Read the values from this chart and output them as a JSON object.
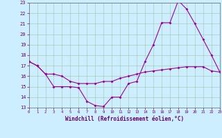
{
  "xlabel": "Windchill (Refroidissement éolien,°C)",
  "background_color": "#cceeff",
  "grid_color": "#aaccbb",
  "line_color": "#990099",
  "xlim": [
    0,
    23
  ],
  "ylim": [
    13,
    23
  ],
  "xticks": [
    0,
    1,
    2,
    3,
    4,
    5,
    6,
    7,
    8,
    9,
    10,
    11,
    12,
    13,
    14,
    15,
    16,
    17,
    18,
    19,
    20,
    21,
    22,
    23
  ],
  "yticks": [
    13,
    14,
    15,
    16,
    17,
    18,
    19,
    20,
    21,
    22,
    23
  ],
  "line1_x": [
    0,
    1,
    2,
    3,
    4,
    5,
    6,
    7,
    8,
    9,
    10,
    11,
    12,
    13,
    14,
    15,
    16,
    17,
    18,
    19,
    20,
    21,
    22,
    23
  ],
  "line1_y": [
    17.4,
    17.0,
    16.2,
    15.0,
    15.0,
    15.0,
    14.9,
    13.6,
    13.2,
    13.1,
    14.0,
    14.0,
    15.3,
    15.5,
    17.4,
    19.0,
    21.1,
    21.1,
    23.2,
    22.4,
    21.0,
    19.5,
    18.0,
    16.4
  ],
  "line2_x": [
    0,
    1,
    2,
    3,
    4,
    5,
    6,
    7,
    8,
    9,
    10,
    11,
    12,
    13,
    14,
    15,
    16,
    17,
    18,
    19,
    20,
    21,
    22,
    23
  ],
  "line2_y": [
    17.4,
    17.0,
    16.2,
    16.2,
    16.0,
    15.5,
    15.3,
    15.3,
    15.3,
    15.5,
    15.5,
    15.8,
    16.0,
    16.2,
    16.4,
    16.5,
    16.6,
    16.7,
    16.8,
    16.9,
    16.9,
    16.9,
    16.5,
    16.4
  ],
  "tick_color": "#660066",
  "label_color": "#660066",
  "spine_color": "#666666"
}
